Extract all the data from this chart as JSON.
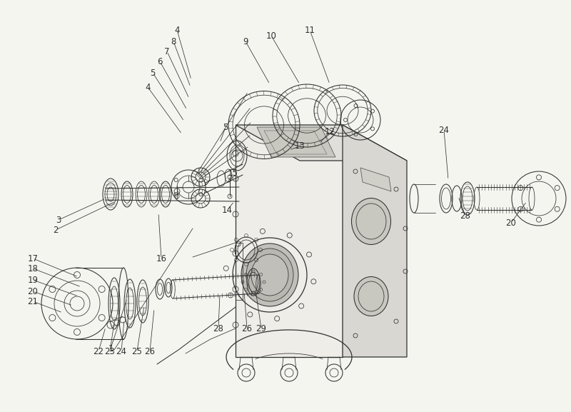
{
  "background_color": "#f5f5f0",
  "line_color": "#303030",
  "fig_width": 8.0,
  "fig_height": 5.77,
  "dpi": 100,
  "annotations": [
    [
      "4",
      248,
      42,
      268,
      112
    ],
    [
      "8",
      243,
      58,
      267,
      122
    ],
    [
      "7",
      234,
      72,
      265,
      138
    ],
    [
      "6",
      224,
      86,
      262,
      154
    ],
    [
      "5",
      214,
      102,
      258,
      170
    ],
    [
      "4",
      207,
      122,
      255,
      188
    ],
    [
      "5",
      316,
      178,
      308,
      200
    ],
    [
      "9",
      344,
      58,
      378,
      118
    ],
    [
      "10",
      380,
      50,
      420,
      118
    ],
    [
      "11",
      434,
      42,
      462,
      118
    ],
    [
      "12",
      462,
      185,
      448,
      200
    ],
    [
      "13",
      420,
      205,
      405,
      210
    ],
    [
      "15",
      326,
      242,
      318,
      258
    ],
    [
      "14",
      318,
      295,
      328,
      282
    ],
    [
      "3",
      82,
      308,
      148,
      278
    ],
    [
      "2",
      78,
      322,
      162,
      282
    ],
    [
      "1",
      155,
      488,
      178,
      418
    ],
    [
      "16",
      226,
      362,
      222,
      298
    ],
    [
      "24",
      622,
      182,
      628,
      252
    ],
    [
      "28",
      652,
      302,
      642,
      275
    ],
    [
      "20",
      716,
      312,
      738,
      282
    ],
    [
      "17",
      46,
      362,
      110,
      388
    ],
    [
      "18",
      46,
      376,
      114,
      402
    ],
    [
      "19",
      46,
      392,
      110,
      415
    ],
    [
      "20",
      46,
      408,
      102,
      428
    ],
    [
      "21",
      46,
      422,
      88,
      438
    ],
    [
      "22",
      138,
      492,
      148,
      458
    ],
    [
      "23",
      154,
      492,
      160,
      452
    ],
    [
      "24",
      170,
      492,
      174,
      448
    ],
    [
      "25",
      192,
      492,
      202,
      428
    ],
    [
      "26",
      210,
      492,
      216,
      432
    ],
    [
      "28",
      306,
      460,
      308,
      412
    ],
    [
      "26",
      346,
      460,
      342,
      408
    ],
    [
      "29",
      366,
      460,
      358,
      406
    ]
  ]
}
